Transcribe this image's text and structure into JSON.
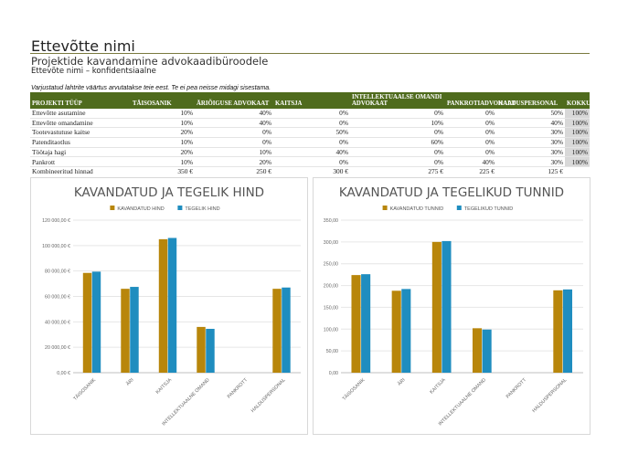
{
  "header": {
    "company": "Ettevõtte nimi",
    "subtitle": "Projektide kavandamine advokaadibüroodele",
    "confidential": "Ettevõte nimi – konfidentsiaalne",
    "note": "Varjustatud lahtrite väärtus arvutatakse teie eest. Te ei pea neisse midagi sisestama."
  },
  "table": {
    "headers": [
      "PROJEKTI TÜÜP",
      "TÄISOSANIK",
      "ÄRIÕIGUSE ADVOKAAT",
      "KAITSJA",
      "INTELLEKTUAALSE OMANDI ADVOKAAT",
      "PANKROTIADVOKAAT",
      "HALDUSPERSONAL",
      "KOKKU"
    ],
    "rows": [
      [
        "Ettevõtte asutamine",
        "10%",
        "40%",
        "0%",
        "0%",
        "0%",
        "50%",
        "100%"
      ],
      [
        "Ettevõtte omandamine",
        "10%",
        "40%",
        "0%",
        "10%",
        "0%",
        "40%",
        "100%"
      ],
      [
        "Tootevastutuse kaitse",
        "20%",
        "0%",
        "50%",
        "0%",
        "0%",
        "30%",
        "100%"
      ],
      [
        "Patenditaotlus",
        "10%",
        "0%",
        "0%",
        "60%",
        "0%",
        "30%",
        "100%"
      ],
      [
        "Töötaja hagi",
        "20%",
        "10%",
        "40%",
        "0%",
        "0%",
        "30%",
        "100%"
      ],
      [
        "Pankrott",
        "10%",
        "20%",
        "0%",
        "0%",
        "40%",
        "30%",
        "100%"
      ]
    ],
    "summary": [
      "Kombineeritud hinnad",
      "350 €",
      "250 €",
      "300 €",
      "275 €",
      "225 €",
      "125 €",
      ""
    ]
  },
  "colors": {
    "header_bg": "#4f6b1d",
    "planned": "#b8860b",
    "actual": "#1f8dbf"
  },
  "chart_data": [
    {
      "type": "bar",
      "title": "KAVANDATUD JA TEGELIK HIND",
      "categories": [
        "TÄISOSANIK",
        "ÄRI",
        "KAITSJA",
        "INTELLEKTUAALNE OMAND",
        "PANKROTT",
        "HALDUSPERSONAL"
      ],
      "series": [
        {
          "name": "KAVANDATUD HIND",
          "values": [
            78500,
            66000,
            105000,
            36000,
            0,
            66000
          ]
        },
        {
          "name": "TEGELIK HIND",
          "values": [
            79500,
            67500,
            106000,
            34500,
            0,
            67000
          ]
        }
      ],
      "ylim": [
        0,
        120000
      ],
      "yticks": [
        "0,00 €",
        "20 000,00 €",
        "40 000,00 €",
        "60 000,00 €",
        "80 000,00 €",
        "100 000,00 €",
        "120 000,00 €"
      ],
      "legend": "top",
      "grid": true
    },
    {
      "type": "bar",
      "title": "KAVANDATUD JA TEGELIKUD TUNNID",
      "categories": [
        "TÄISOSANIK",
        "ÄRI",
        "KAITSJA",
        "INTELLEKTUAALNE OMAND",
        "PANKROTT",
        "HALDUSPERSONAL"
      ],
      "series": [
        {
          "name": "KAVANDATUD TUNNID",
          "values": [
            224,
            188,
            300,
            102,
            0,
            189
          ]
        },
        {
          "name": "TEGELIKUD TUNNID",
          "values": [
            226,
            192,
            302,
            99,
            0,
            191
          ]
        }
      ],
      "ylim": [
        0,
        350
      ],
      "yticks": [
        "0,00",
        "50,00",
        "100,00",
        "150,00",
        "200,00",
        "250,00",
        "300,00",
        "350,00"
      ],
      "legend": "top",
      "grid": true
    }
  ]
}
